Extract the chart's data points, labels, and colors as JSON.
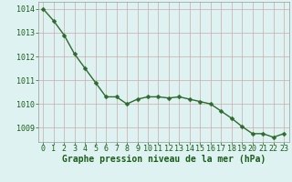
{
  "x": [
    0,
    1,
    2,
    3,
    4,
    5,
    6,
    7,
    8,
    9,
    10,
    11,
    12,
    13,
    14,
    15,
    16,
    17,
    18,
    19,
    20,
    21,
    22,
    23
  ],
  "y": [
    1014.0,
    1013.5,
    1012.9,
    1012.1,
    1011.5,
    1010.9,
    1010.3,
    1010.3,
    1010.0,
    1010.2,
    1010.3,
    1010.3,
    1010.25,
    1010.3,
    1010.2,
    1010.1,
    1010.0,
    1009.7,
    1009.4,
    1009.05,
    1008.75,
    1008.75,
    1008.6,
    1008.75
  ],
  "line_color": "#2d6a2d",
  "marker": "D",
  "marker_size": 2.5,
  "line_width": 1.0,
  "bg_color": "#dff2f2",
  "grid_color_minor": "#e8c8c8",
  "grid_color_major": "#ccaaaa",
  "xlabel": "Graphe pression niveau de la mer (hPa)",
  "xlabel_color": "#1a5c1a",
  "xlabel_fontsize": 7,
  "tick_label_color": "#1a5c1a",
  "tick_fontsize": 6,
  "ylim": [
    1008.4,
    1014.3
  ],
  "yticks": [
    1009,
    1010,
    1011,
    1012,
    1013,
    1014
  ],
  "xlim": [
    -0.5,
    23.5
  ],
  "xticks": [
    0,
    1,
    2,
    3,
    4,
    5,
    6,
    7,
    8,
    9,
    10,
    11,
    12,
    13,
    14,
    15,
    16,
    17,
    18,
    19,
    20,
    21,
    22,
    23
  ]
}
